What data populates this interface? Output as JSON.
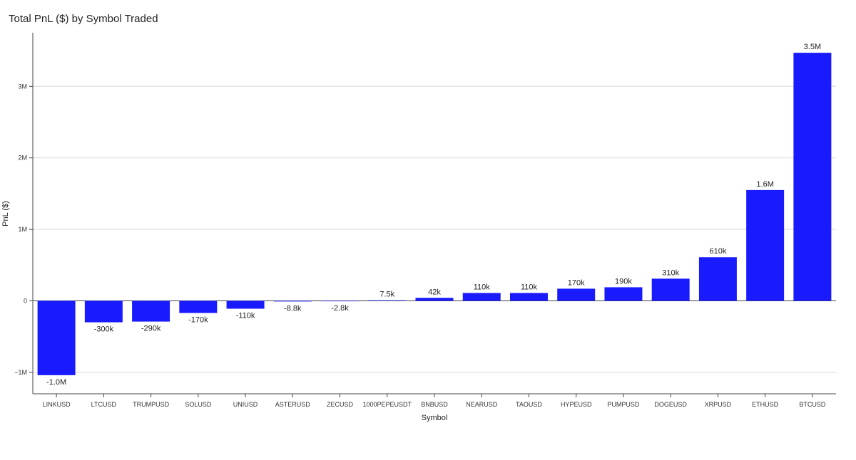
{
  "chart_data": {
    "type": "bar",
    "title": "Total PnL ($) by Symbol Traded",
    "xlabel": "Symbol",
    "ylabel": "PnL ($)",
    "categories": [
      "LINKUSD",
      "LTCUSD",
      "TRUMPUSD",
      "SOLUSD",
      "UNIUSD",
      "ASTERUSD",
      "ZECUSD",
      "1000PEPEUSDT",
      "BNBUSD",
      "NEARUSD",
      "TAOUSD",
      "HYPEUSD",
      "PUMPUSD",
      "DOGEUSD",
      "XRPUSD",
      "ETHUSD",
      "BTCUSD"
    ],
    "values": [
      -1040000,
      -300000,
      -290000,
      -170000,
      -110000,
      -8800,
      -2800,
      7500,
      42000,
      110000,
      110000,
      170000,
      190000,
      310000,
      610000,
      1550000,
      3470000
    ],
    "data_labels": [
      "-1.0M",
      "-300k",
      "-290k",
      "-170k",
      "-110k",
      "-8.8k",
      "-2.8k",
      "7.5k",
      "42k",
      "110k",
      "110k",
      "170k",
      "190k",
      "310k",
      "610k",
      "1.6M",
      "3.5M"
    ],
    "yticks": [
      -1000000,
      0,
      1000000,
      2000000,
      3000000
    ],
    "ytick_labels": [
      "−1M",
      "0",
      "1M",
      "2M",
      "3M"
    ],
    "ylim": [
      -1300000,
      3750000
    ],
    "grid": true,
    "bar_color": "#1a1aff"
  }
}
